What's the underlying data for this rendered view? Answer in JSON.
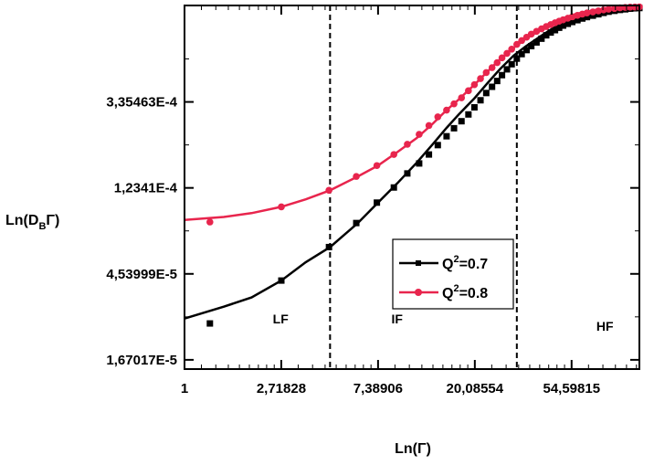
{
  "chart_data": {
    "type": "line",
    "xlabel": "Ln(Γ)",
    "ylabel": {
      "prefix": "Ln(D",
      "sub": "B",
      "suffix": "Γ)"
    },
    "x_scale": "log",
    "y_scale": "log",
    "xlim": [
      1,
      110
    ],
    "ylim": [
      1.5e-05,
      0.00103
    ],
    "x_ticks": [
      {
        "value": 1,
        "label": "1"
      },
      {
        "value": 2.71828,
        "label": "2,71828"
      },
      {
        "value": 7.38906,
        "label": "7,38906"
      },
      {
        "value": 20.08554,
        "label": "20,08554"
      },
      {
        "value": 54.59815,
        "label": "54,59815"
      }
    ],
    "y_ticks": [
      {
        "value": 1.67017e-05,
        "label": "1,67017E-5"
      },
      {
        "value": 4.53999e-05,
        "label": "4,53999E-5"
      },
      {
        "value": 0.00012341,
        "label": "1,2341E-4"
      },
      {
        "value": 0.000335463,
        "label": "3,35463E-4"
      }
    ],
    "region_lines": [
      4.5,
      31
    ],
    "regions": [
      {
        "label": "LF",
        "x": 2.7,
        "y": 2.55e-05
      },
      {
        "label": "IF",
        "x": 9.0,
        "y": 2.55e-05
      },
      {
        "label": "HF",
        "x": 77,
        "y": 2.35e-05
      }
    ],
    "legend_position": "center-right",
    "series": [
      {
        "name": {
          "prefix": "Q",
          "sup": "2",
          "suffix": "=0.7"
        },
        "color": "#000000",
        "marker": "square",
        "curve": {
          "x": [
            1,
            1.5,
            2,
            2.72,
            3.5,
            4.5,
            6,
            7.39,
            9,
            11,
            13,
            15,
            17,
            20,
            23,
            26,
            30,
            34,
            40,
            45,
            50,
            54.6,
            60,
            70,
            80,
            90,
            100,
            110
          ],
          "y": [
            2.7e-05,
            3.1e-05,
            3.45e-05,
            4.2e-05,
            5.2e-05,
            6.2e-05,
            8.2e-05,
            0.000104,
            0.00013,
            0.000165,
            0.000205,
            0.000248,
            0.00029,
            0.00035,
            0.00042,
            0.00049,
            0.000575,
            0.00064,
            0.000725,
            0.00079,
            0.00084,
            0.00088,
            0.00091,
            0.00095,
            0.000975,
            0.000988,
            0.000995,
            0.001
          ]
        },
        "points": {
          "x": [
            1.3,
            2.72,
            4.45,
            5.9,
            7.3,
            8.7,
            10,
            11.3,
            12.5,
            13.7,
            15,
            16.2,
            17.5,
            18.8,
            20,
            21.3,
            22.6,
            24,
            25.3,
            26.6,
            28,
            29.4,
            31,
            32.6,
            34.3,
            36,
            38,
            40,
            42,
            44,
            46,
            48,
            50,
            52.5,
            55,
            58,
            61,
            64,
            68,
            72,
            76,
            80,
            85,
            90,
            95,
            100,
            105,
            110
          ],
          "y": [
            2.55e-05,
            4.2e-05,
            6.2e-05,
            8.2e-05,
            0.000104,
            0.000124,
            0.000146,
            0.000164,
            0.000182,
            0.000203,
            0.000225,
            0.000247,
            0.000268,
            0.00029,
            0.000315,
            0.000342,
            0.000372,
            0.0004,
            0.000428,
            0.000458,
            0.00049,
            0.00052,
            0.000555,
            0.000585,
            0.000613,
            0.000642,
            0.00067,
            0.0007,
            0.000728,
            0.000752,
            0.000773,
            0.000795,
            0.000815,
            0.000832,
            0.00085,
            0.000868,
            0.000885,
            0.0009,
            0.000915,
            0.00093,
            0.000945,
            0.000958,
            0.000968,
            0.000978,
            0.000985,
            0.000992,
            0.000997,
            0.001
          ]
        }
      },
      {
        "name": {
          "prefix": "Q",
          "sup": "2",
          "suffix": "=0.8"
        },
        "color": "#e8254d",
        "marker": "circle",
        "curve": {
          "x": [
            1,
            1.5,
            2,
            2.72,
            3.5,
            4.5,
            6,
            7.39,
            9,
            11,
            13,
            15,
            17,
            20,
            23,
            26,
            30,
            34,
            40,
            45,
            50,
            54.6,
            60,
            70,
            80,
            90,
            100,
            110
          ],
          "y": [
            8.5e-05,
            8.8e-05,
            9.2e-05,
            9.9e-05,
            0.000108,
            0.00012,
            0.000141,
            0.00016,
            0.000187,
            0.00022,
            0.00026,
            0.000305,
            0.000345,
            0.00041,
            0.00048,
            0.00055,
            0.00063,
            0.0007,
            0.00078,
            0.00084,
            0.000885,
            0.00092,
            0.000945,
            0.000978,
            0.000995,
            0.001005,
            0.00101,
            0.001012
          ]
        },
        "points": {
          "x": [
            1.3,
            2.72,
            4.45,
            5.9,
            7.3,
            8.7,
            10,
            11.3,
            12.5,
            13.7,
            15,
            16.2,
            17.5,
            18.8,
            20,
            21.3,
            22.6,
            24,
            25.3,
            26.6,
            28,
            29.4,
            31,
            32.6,
            34.3,
            36,
            38,
            40,
            42,
            44,
            46,
            48,
            50,
            52.5,
            55,
            58,
            61,
            64,
            68,
            72,
            76,
            80,
            85,
            90,
            95,
            100,
            105,
            110
          ],
          "y": [
            8.3e-05,
            9.9e-05,
            0.00012,
            0.000141,
            0.00016,
            0.000182,
            0.000205,
            0.00023,
            0.000255,
            0.000282,
            0.000305,
            0.000328,
            0.000352,
            0.000382,
            0.00041,
            0.00044,
            0.000472,
            0.0005,
            0.00053,
            0.00056,
            0.00059,
            0.00062,
            0.000655,
            0.000685,
            0.000712,
            0.000738,
            0.000762,
            0.000785,
            0.000806,
            0.000825,
            0.000842,
            0.000858,
            0.000872,
            0.000888,
            0.000903,
            0.000918,
            0.000932,
            0.000944,
            0.000956,
            0.000967,
            0.000978,
            0.000987,
            0.000995,
            0.001002,
            0.001007,
            0.00101,
            0.001012,
            0.001013
          ]
        }
      }
    ]
  }
}
